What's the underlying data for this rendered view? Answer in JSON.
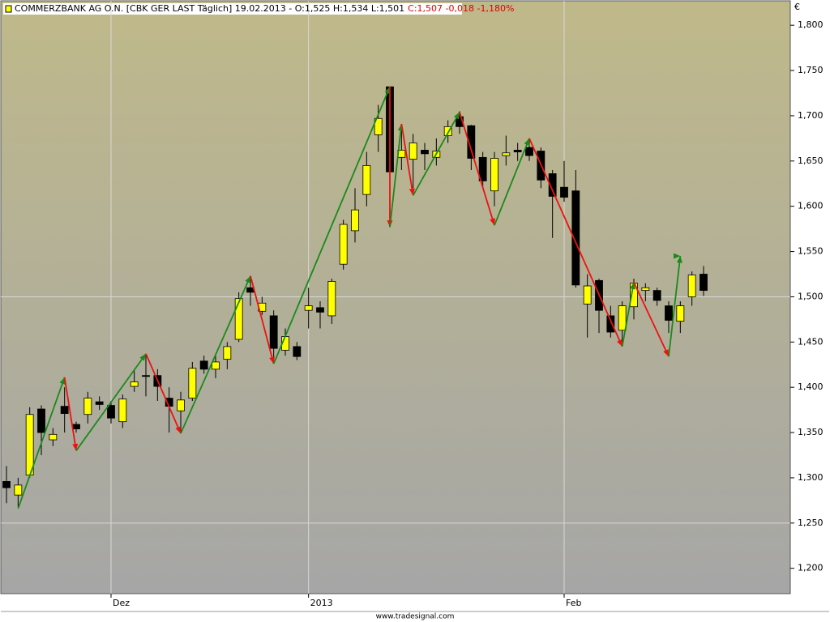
{
  "chart_data": {
    "type": "candlestick",
    "title": "COMMERZBANK AG O.N. [CBK GER LAST Täglich] 19.02.2013 - O:1,525 H:1,534 L:1,501",
    "title_change": "C:1,507 -0,018 -1,180%",
    "currency": "€",
    "footer": "www.tradesignal.com",
    "up_color": "#ffff00",
    "down_color": "#000000",
    "zigzag_up_color": "#1a8a1a",
    "zigzag_down_color": "#ee1111",
    "categories": [
      null,
      null,
      null,
      null,
      null,
      null,
      null,
      null,
      null,
      "Dez",
      null,
      null,
      null,
      null,
      null,
      null,
      null,
      null,
      null,
      null,
      null,
      null,
      null,
      null,
      null,
      null,
      "2013",
      null,
      null,
      null,
      null,
      null,
      null,
      null,
      null,
      null,
      null,
      null,
      null,
      null,
      null,
      null,
      null,
      null,
      null,
      null,
      null,
      null,
      "Feb",
      null,
      null,
      null,
      null,
      null,
      null,
      null,
      null,
      null,
      null,
      null,
      null
    ],
    "open": [
      1.296,
      1.281,
      1.303,
      1.376,
      1.342,
      1.379,
      1.359,
      1.37,
      1.384,
      1.38,
      1.362,
      1.401,
      1.413,
      1.413,
      1.388,
      1.374,
      1.388,
      1.429,
      1.42,
      1.431,
      1.453,
      1.51,
      1.484,
      1.479,
      1.441,
      1.445,
      1.485,
      1.488,
      1.479,
      1.536,
      1.573,
      1.613,
      1.679,
      1.732,
      1.654,
      1.652,
      1.662,
      1.654,
      1.678,
      1.699,
      1.689,
      1.654,
      1.617,
      1.656,
      1.662,
      1.665,
      1.661,
      1.636,
      1.621,
      1.617,
      1.492,
      1.518,
      1.479,
      1.463,
      1.489,
      1.507,
      1.507,
      1.49,
      1.473,
      1.5,
      1.525
    ],
    "high": [
      1.313,
      1.3,
      1.378,
      1.38,
      1.355,
      1.4,
      1.362,
      1.395,
      1.39,
      1.385,
      1.392,
      1.42,
      1.435,
      1.42,
      1.4,
      1.395,
      1.428,
      1.435,
      1.435,
      1.45,
      1.505,
      1.52,
      1.5,
      1.485,
      1.465,
      1.45,
      1.51,
      1.495,
      1.52,
      1.585,
      1.62,
      1.66,
      1.712,
      1.732,
      1.69,
      1.68,
      1.67,
      1.675,
      1.695,
      1.705,
      1.69,
      1.66,
      1.66,
      1.678,
      1.67,
      1.675,
      1.665,
      1.64,
      1.65,
      1.64,
      1.525,
      1.52,
      1.49,
      1.495,
      1.52,
      1.515,
      1.51,
      1.495,
      1.495,
      1.528,
      1.534
    ],
    "low": [
      1.272,
      1.268,
      1.3,
      1.325,
      1.335,
      1.35,
      1.35,
      1.36,
      1.375,
      1.36,
      1.355,
      1.395,
      1.39,
      1.385,
      1.35,
      1.35,
      1.385,
      1.415,
      1.41,
      1.42,
      1.45,
      1.49,
      1.48,
      1.43,
      1.435,
      1.43,
      1.465,
      1.465,
      1.47,
      1.53,
      1.56,
      1.6,
      1.66,
      1.63,
      1.64,
      1.62,
      1.64,
      1.645,
      1.67,
      1.68,
      1.64,
      1.62,
      1.6,
      1.645,
      1.65,
      1.65,
      1.62,
      1.565,
      1.605,
      1.51,
      1.455,
      1.46,
      1.455,
      1.45,
      1.475,
      1.495,
      1.49,
      1.46,
      1.46,
      1.49,
      1.501
    ],
    "close": [
      1.289,
      1.292,
      1.37,
      1.35,
      1.348,
      1.371,
      1.354,
      1.388,
      1.381,
      1.366,
      1.387,
      1.406,
      1.412,
      1.401,
      1.379,
      1.386,
      1.421,
      1.42,
      1.428,
      1.445,
      1.498,
      1.505,
      1.493,
      1.443,
      1.456,
      1.434,
      1.49,
      1.483,
      1.517,
      1.58,
      1.596,
      1.645,
      1.697,
      1.638,
      1.662,
      1.67,
      1.658,
      1.661,
      1.688,
      1.688,
      1.653,
      1.628,
      1.653,
      1.659,
      1.66,
      1.656,
      1.629,
      1.611,
      1.61,
      1.513,
      1.512,
      1.485,
      1.461,
      1.49,
      1.515,
      1.51,
      1.496,
      1.474,
      1.49,
      1.524,
      1.507
    ],
    "zigzag": {
      "x": [
        1,
        5,
        6,
        12,
        15,
        21,
        23,
        33,
        33,
        34,
        35,
        39,
        42,
        45,
        53,
        54,
        57,
        58,
        58
      ],
      "values": [
        1.266,
        1.411,
        1.33,
        1.437,
        1.349,
        1.523,
        1.426,
        1.732,
        1.577,
        1.691,
        1.612,
        1.704,
        1.579,
        1.675,
        1.445,
        1.516,
        1.434,
        1.545,
        1.545
      ]
    },
    "ylim": [
      1.172,
      1.827
    ],
    "yticks": [
      {
        "value": 1.2,
        "label": "1,200"
      },
      {
        "value": 1.25,
        "label": "1,250"
      },
      {
        "value": 1.3,
        "label": "1,300"
      },
      {
        "value": 1.35,
        "label": "1,350"
      },
      {
        "value": 1.4,
        "label": "1,400"
      },
      {
        "value": 1.45,
        "label": "1,450"
      },
      {
        "value": 1.5,
        "label": "1,500"
      },
      {
        "value": 1.55,
        "label": "1,550"
      },
      {
        "value": 1.6,
        "label": "1,600"
      },
      {
        "value": 1.65,
        "label": "1,650"
      },
      {
        "value": 1.7,
        "label": "1,700"
      },
      {
        "value": 1.75,
        "label": "1,750"
      },
      {
        "value": 1.8,
        "label": "1,800"
      }
    ],
    "grid_y": [
      1.25,
      1.5
    ]
  }
}
